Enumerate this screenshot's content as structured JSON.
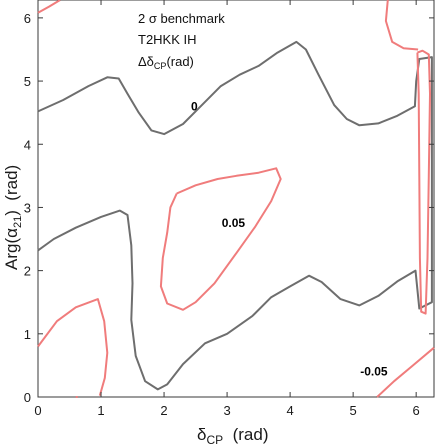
{
  "chart_data": {
    "type": "contour",
    "annotations": [
      "2 σ benchmark",
      "T2HKK IH"
    ],
    "annotation_delta": "Δδ",
    "annotation_sub": "CP",
    "annotation_unit": "(rad)",
    "xlabel": {
      "main": "δ",
      "sub": "CP",
      "rest": "  (rad)"
    },
    "ylabel": {
      "pre": "Arg(α",
      "sub": "21",
      "post": ")  (rad)"
    },
    "xlim": [
      0,
      6.283
    ],
    "ylim": [
      0,
      6.283
    ],
    "x_ticks": [
      0,
      1,
      2,
      3,
      4,
      5,
      6
    ],
    "y_ticks": [
      0,
      1,
      2,
      3,
      4,
      5,
      6
    ],
    "x_tick_labels": [
      "0",
      "1",
      "2",
      "3",
      "4",
      "5",
      "6"
    ],
    "y_tick_labels": [
      "0",
      "1",
      "2",
      "3",
      "4",
      "5",
      "6"
    ],
    "colors": {
      "zero": "#6e6e6e",
      "pos": "#f07c7c",
      "neg": "#f07c7c"
    },
    "contours": [
      {
        "level": "0",
        "color_key": "zero",
        "label": "0",
        "label_at": [
          2.48,
          4.6
        ],
        "points": [
          [
            0,
            4.52
          ],
          [
            0.4,
            4.7
          ],
          [
            0.8,
            4.92
          ],
          [
            1.1,
            5.06
          ],
          [
            1.28,
            5.04
          ],
          [
            1.42,
            4.8
          ],
          [
            1.6,
            4.5
          ],
          [
            1.8,
            4.22
          ],
          [
            2.0,
            4.16
          ],
          [
            2.3,
            4.32
          ],
          [
            2.6,
            4.62
          ],
          [
            2.9,
            4.92
          ],
          [
            3.2,
            5.1
          ],
          [
            3.5,
            5.24
          ],
          [
            3.8,
            5.45
          ],
          [
            4.1,
            5.62
          ],
          [
            4.25,
            5.5
          ],
          [
            4.45,
            5.1
          ],
          [
            4.7,
            4.62
          ],
          [
            4.9,
            4.4
          ],
          [
            5.1,
            4.3
          ],
          [
            5.4,
            4.33
          ],
          [
            5.7,
            4.45
          ],
          [
            5.98,
            4.6
          ],
          [
            6.0,
            5.0
          ],
          [
            6.05,
            5.35
          ],
          [
            6.25,
            5.38
          ],
          [
            6.25,
            1.5
          ],
          [
            6.05,
            1.4
          ],
          [
            5.99,
            2.0
          ],
          [
            5.7,
            1.83
          ],
          [
            5.4,
            1.6
          ],
          [
            5.1,
            1.45
          ],
          [
            4.8,
            1.55
          ],
          [
            4.5,
            1.82
          ],
          [
            4.3,
            1.92
          ],
          [
            4.0,
            1.75
          ],
          [
            3.7,
            1.58
          ],
          [
            3.4,
            1.28
          ],
          [
            3.0,
            1.0
          ],
          [
            2.65,
            0.85
          ],
          [
            2.3,
            0.52
          ],
          [
            2.05,
            0.2
          ],
          [
            1.9,
            0.12
          ],
          [
            1.7,
            0.25
          ],
          [
            1.55,
            0.65
          ],
          [
            1.48,
            1.22
          ],
          [
            1.5,
            1.8
          ],
          [
            1.48,
            2.4
          ],
          [
            1.42,
            2.88
          ],
          [
            1.3,
            2.95
          ],
          [
            1.0,
            2.85
          ],
          [
            0.6,
            2.68
          ],
          [
            0.25,
            2.5
          ],
          [
            0,
            2.32
          ]
        ]
      },
      {
        "level": "0.05",
        "color_key": "pos",
        "label": "0.05",
        "label_at": [
          3.1,
          2.75
        ],
        "points": [
          [
            2.2,
            3.22
          ],
          [
            2.5,
            3.35
          ],
          [
            2.85,
            3.45
          ],
          [
            3.15,
            3.5
          ],
          [
            3.5,
            3.55
          ],
          [
            3.78,
            3.62
          ],
          [
            3.85,
            3.45
          ],
          [
            3.7,
            3.1
          ],
          [
            3.45,
            2.7
          ],
          [
            3.15,
            2.28
          ],
          [
            2.8,
            1.8
          ],
          [
            2.5,
            1.5
          ],
          [
            2.3,
            1.38
          ],
          [
            2.05,
            1.48
          ],
          [
            1.95,
            1.75
          ],
          [
            1.98,
            2.2
          ],
          [
            2.05,
            2.6
          ],
          [
            2.1,
            3.0
          ],
          [
            2.2,
            3.22
          ]
        ]
      },
      {
        "level": "0.05",
        "color_key": "pos",
        "label": "",
        "points": [
          [
            6.02,
            5.45
          ],
          [
            6.04,
            4.8
          ],
          [
            6.05,
            3.5
          ],
          [
            6.06,
            2.2
          ],
          [
            6.08,
            1.35
          ],
          [
            6.15,
            1.32
          ],
          [
            6.18,
            2.2
          ],
          [
            6.2,
            3.5
          ],
          [
            6.22,
            4.8
          ],
          [
            6.2,
            5.42
          ],
          [
            6.1,
            5.48
          ],
          [
            6.02,
            5.45
          ]
        ]
      },
      {
        "level": "0.05",
        "color_key": "pos",
        "label": "",
        "points": [
          [
            0,
            0.8
          ],
          [
            0.3,
            1.2
          ],
          [
            0.6,
            1.42
          ],
          [
            0.95,
            1.55
          ],
          [
            1.05,
            1.2
          ],
          [
            1.1,
            0.7
          ],
          [
            1.06,
            0.3
          ],
          [
            0.98,
            0.02
          ]
        ]
      },
      {
        "level": "0.05",
        "color_key": "pos",
        "label": "",
        "points": [
          [
            0.35,
            6.283
          ],
          [
            0.18,
            6.18
          ],
          [
            0,
            6.08
          ]
        ]
      },
      {
        "level": "0.05",
        "color_key": "pos",
        "label": "",
        "points": [
          [
            5.55,
            6.283
          ],
          [
            5.52,
            5.95
          ],
          [
            5.62,
            5.62
          ],
          [
            5.8,
            5.52
          ],
          [
            6.03,
            5.5
          ]
        ]
      },
      {
        "level": "0.05",
        "color_key": "pos",
        "label": "",
        "points": [
          [
            0.6,
            0
          ],
          [
            0.63,
            0
          ]
        ]
      },
      {
        "level": "-0.05",
        "color_key": "neg",
        "label": "-0.05",
        "label_at": [
          5.33,
          0.4
        ],
        "points": [
          [
            5.38,
            0
          ],
          [
            5.65,
            0.25
          ],
          [
            5.95,
            0.5
          ],
          [
            6.283,
            0.78
          ]
        ]
      }
    ]
  }
}
